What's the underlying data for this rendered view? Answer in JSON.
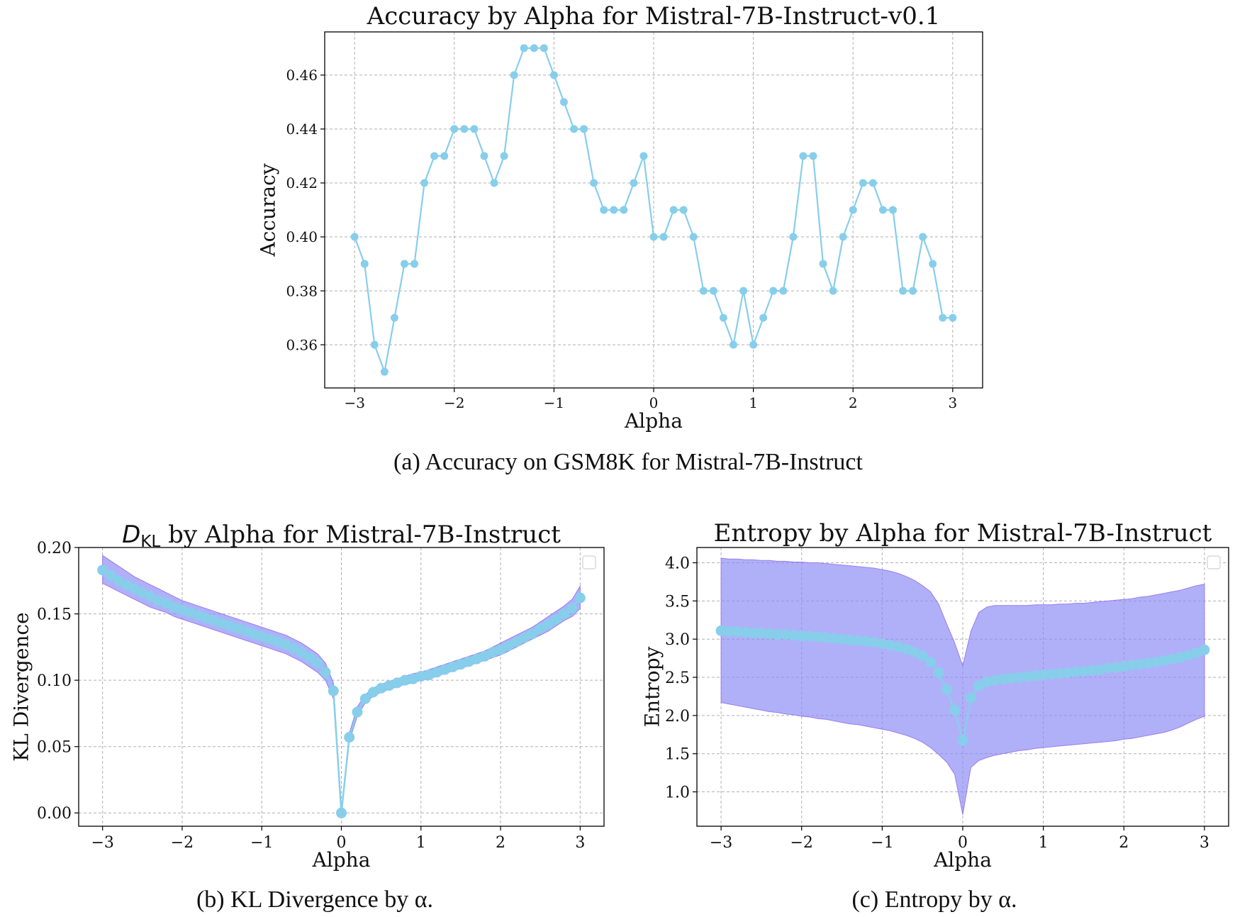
{
  "colors": {
    "line": "#87CEEB",
    "band": "#8B8BF5",
    "band_edge": "#9a7cf0",
    "grid": "#b0b0b0",
    "axis": "#000000"
  },
  "captions": {
    "a": "(a) Accuracy on GSM8K for Mistral-7B-Instruct",
    "b": "(b) KL Divergence by α.",
    "c": "(c) Entropy by α."
  },
  "chart_data": [
    {
      "id": "accuracy",
      "type": "line",
      "title": "Accuracy by Alpha for Mistral-7B-Instruct-v0.1",
      "xlabel": "Alpha",
      "ylabel": "Accuracy",
      "xlim": [
        -3.3,
        3.3
      ],
      "ylim": [
        0.344,
        0.476
      ],
      "xticks": [
        -3,
        -2,
        -1,
        0,
        1,
        2,
        3
      ],
      "xtick_labels": [
        "−3",
        "−2",
        "−1",
        "0",
        "1",
        "2",
        "3"
      ],
      "yticks": [
        0.36,
        0.38,
        0.4,
        0.42,
        0.44,
        0.46
      ],
      "ytick_labels": [
        "0.36",
        "0.38",
        "0.40",
        "0.42",
        "0.44",
        "0.46"
      ],
      "grid": true,
      "x": [
        -3.0,
        -2.9,
        -2.8,
        -2.7,
        -2.6,
        -2.5,
        -2.4,
        -2.3,
        -2.2,
        -2.1,
        -2.0,
        -1.9,
        -1.8,
        -1.7,
        -1.6,
        -1.5,
        -1.4,
        -1.3,
        -1.2,
        -1.1,
        -1.0,
        -0.9,
        -0.8,
        -0.7,
        -0.6,
        -0.5,
        -0.4,
        -0.3,
        -0.2,
        -0.1,
        0.0,
        0.1,
        0.2,
        0.3,
        0.4,
        0.5,
        0.6,
        0.7,
        0.8,
        0.9,
        1.0,
        1.1,
        1.2,
        1.3,
        1.4,
        1.5,
        1.6,
        1.7,
        1.8,
        1.9,
        2.0,
        2.1,
        2.2,
        2.3,
        2.4,
        2.5,
        2.6,
        2.7,
        2.8,
        2.9,
        3.0
      ],
      "y": [
        0.4,
        0.39,
        0.36,
        0.35,
        0.37,
        0.39,
        0.39,
        0.42,
        0.43,
        0.43,
        0.44,
        0.44,
        0.44,
        0.43,
        0.42,
        0.43,
        0.46,
        0.47,
        0.47,
        0.47,
        0.46,
        0.45,
        0.44,
        0.44,
        0.42,
        0.41,
        0.41,
        0.41,
        0.42,
        0.43,
        0.4,
        0.4,
        0.41,
        0.41,
        0.4,
        0.38,
        0.38,
        0.37,
        0.36,
        0.38,
        0.36,
        0.37,
        0.38,
        0.38,
        0.4,
        0.43,
        0.43,
        0.39,
        0.38,
        0.4,
        0.41,
        0.42,
        0.42,
        0.41,
        0.41,
        0.38,
        0.38,
        0.4,
        0.39,
        0.37,
        0.37
      ]
    },
    {
      "id": "kl",
      "type": "line",
      "title_math": "D",
      "title_sub": "KL",
      "title": " by Alpha for Mistral-7B-Instruct",
      "xlabel": "Alpha",
      "ylabel": "KL Divergence",
      "xlim": [
        -3.3,
        3.3
      ],
      "ylim": [
        -0.01,
        0.2
      ],
      "xticks": [
        -3,
        -2,
        -1,
        0,
        1,
        2,
        3
      ],
      "xtick_labels": [
        "−3",
        "−2",
        "−1",
        "0",
        "1",
        "2",
        "3"
      ],
      "yticks": [
        0.0,
        0.05,
        0.1,
        0.15,
        0.2
      ],
      "ytick_labels": [
        "0.00",
        "0.05",
        "0.10",
        "0.15",
        "0.20"
      ],
      "grid": true,
      "legend": "top-right (empty)",
      "x": [
        -3.0,
        -2.9,
        -2.8,
        -2.7,
        -2.6,
        -2.5,
        -2.4,
        -2.3,
        -2.2,
        -2.1,
        -2.0,
        -1.9,
        -1.8,
        -1.7,
        -1.6,
        -1.5,
        -1.4,
        -1.3,
        -1.2,
        -1.1,
        -1.0,
        -0.9,
        -0.8,
        -0.7,
        -0.6,
        -0.5,
        -0.4,
        -0.3,
        -0.2,
        -0.1,
        0.0,
        0.1,
        0.2,
        0.3,
        0.4,
        0.5,
        0.6,
        0.7,
        0.8,
        0.9,
        1.0,
        1.1,
        1.2,
        1.3,
        1.4,
        1.5,
        1.6,
        1.7,
        1.8,
        1.9,
        2.0,
        2.1,
        2.2,
        2.3,
        2.4,
        2.5,
        2.6,
        2.7,
        2.8,
        2.9,
        3.0
      ],
      "y": [
        0.183,
        0.179,
        0.175,
        0.172,
        0.169,
        0.166,
        0.163,
        0.16,
        0.158,
        0.155,
        0.153,
        0.151,
        0.149,
        0.147,
        0.145,
        0.143,
        0.141,
        0.139,
        0.137,
        0.135,
        0.133,
        0.131,
        0.129,
        0.127,
        0.124,
        0.121,
        0.117,
        0.113,
        0.106,
        0.092,
        0.0,
        0.057,
        0.076,
        0.086,
        0.091,
        0.094,
        0.096,
        0.098,
        0.1,
        0.101,
        0.103,
        0.104,
        0.106,
        0.108,
        0.11,
        0.112,
        0.114,
        0.116,
        0.118,
        0.121,
        0.123,
        0.126,
        0.129,
        0.132,
        0.135,
        0.139,
        0.142,
        0.146,
        0.15,
        0.154,
        0.162
      ],
      "band_lower": [
        0.173,
        0.17,
        0.167,
        0.164,
        0.161,
        0.158,
        0.155,
        0.153,
        0.151,
        0.148,
        0.146,
        0.144,
        0.142,
        0.14,
        0.138,
        0.136,
        0.134,
        0.132,
        0.13,
        0.128,
        0.126,
        0.124,
        0.122,
        0.12,
        0.117,
        0.114,
        0.11,
        0.106,
        0.1,
        0.086,
        0.0,
        0.054,
        0.073,
        0.083,
        0.088,
        0.091,
        0.093,
        0.095,
        0.097,
        0.098,
        0.1,
        0.101,
        0.103,
        0.105,
        0.107,
        0.109,
        0.111,
        0.113,
        0.115,
        0.117,
        0.119,
        0.122,
        0.125,
        0.128,
        0.131,
        0.134,
        0.137,
        0.141,
        0.145,
        0.148,
        0.154
      ],
      "band_upper": [
        0.194,
        0.19,
        0.186,
        0.182,
        0.178,
        0.175,
        0.172,
        0.169,
        0.166,
        0.163,
        0.16,
        0.158,
        0.156,
        0.154,
        0.152,
        0.15,
        0.148,
        0.146,
        0.144,
        0.142,
        0.14,
        0.138,
        0.136,
        0.134,
        0.131,
        0.128,
        0.124,
        0.12,
        0.113,
        0.098,
        0.0,
        0.06,
        0.08,
        0.089,
        0.094,
        0.097,
        0.099,
        0.101,
        0.103,
        0.105,
        0.106,
        0.108,
        0.11,
        0.112,
        0.114,
        0.116,
        0.118,
        0.12,
        0.122,
        0.125,
        0.128,
        0.131,
        0.134,
        0.137,
        0.14,
        0.144,
        0.148,
        0.152,
        0.156,
        0.161,
        0.171
      ]
    },
    {
      "id": "entropy",
      "type": "line",
      "title": "Entropy by Alpha for Mistral-7B-Instruct",
      "xlabel": "Alpha",
      "ylabel": "Entropy",
      "xlim": [
        -3.3,
        3.3
      ],
      "ylim": [
        0.55,
        4.2
      ],
      "xticks": [
        -3,
        -2,
        -1,
        0,
        1,
        2,
        3
      ],
      "xtick_labels": [
        "−3",
        "−2",
        "−1",
        "0",
        "1",
        "2",
        "3"
      ],
      "yticks": [
        1.0,
        1.5,
        2.0,
        2.5,
        3.0,
        3.5,
        4.0
      ],
      "ytick_labels": [
        "1.0",
        "1.5",
        "2.0",
        "2.5",
        "3.0",
        "3.5",
        "4.0"
      ],
      "grid": true,
      "legend": "top-right (empty)",
      "x": [
        -3.0,
        -2.9,
        -2.8,
        -2.7,
        -2.6,
        -2.5,
        -2.4,
        -2.3,
        -2.2,
        -2.1,
        -2.0,
        -1.9,
        -1.8,
        -1.7,
        -1.6,
        -1.5,
        -1.4,
        -1.3,
        -1.2,
        -1.1,
        -1.0,
        -0.9,
        -0.8,
        -0.7,
        -0.6,
        -0.5,
        -0.4,
        -0.3,
        -0.2,
        -0.1,
        0.0,
        0.1,
        0.2,
        0.3,
        0.4,
        0.5,
        0.6,
        0.7,
        0.8,
        0.9,
        1.0,
        1.1,
        1.2,
        1.3,
        1.4,
        1.5,
        1.6,
        1.7,
        1.8,
        1.9,
        2.0,
        2.1,
        2.2,
        2.3,
        2.4,
        2.5,
        2.6,
        2.7,
        2.8,
        2.9,
        3.0
      ],
      "y": [
        3.11,
        3.1,
        3.1,
        3.09,
        3.08,
        3.08,
        3.07,
        3.06,
        3.06,
        3.05,
        3.04,
        3.04,
        3.03,
        3.02,
        3.01,
        3.0,
        2.99,
        2.98,
        2.97,
        2.96,
        2.94,
        2.92,
        2.9,
        2.87,
        2.83,
        2.78,
        2.7,
        2.56,
        2.34,
        2.07,
        1.67,
        2.23,
        2.39,
        2.44,
        2.46,
        2.48,
        2.49,
        2.5,
        2.51,
        2.52,
        2.53,
        2.54,
        2.55,
        2.56,
        2.57,
        2.58,
        2.59,
        2.6,
        2.62,
        2.63,
        2.64,
        2.66,
        2.67,
        2.69,
        2.7,
        2.72,
        2.74,
        2.76,
        2.79,
        2.82,
        2.86
      ],
      "band_lower": [
        2.17,
        2.15,
        2.13,
        2.11,
        2.09,
        2.07,
        2.05,
        2.04,
        2.02,
        2.01,
        1.99,
        1.98,
        1.96,
        1.95,
        1.93,
        1.91,
        1.89,
        1.88,
        1.86,
        1.84,
        1.82,
        1.8,
        1.77,
        1.74,
        1.7,
        1.65,
        1.58,
        1.49,
        1.39,
        1.23,
        0.7,
        1.32,
        1.41,
        1.45,
        1.48,
        1.5,
        1.52,
        1.54,
        1.55,
        1.57,
        1.58,
        1.59,
        1.6,
        1.61,
        1.62,
        1.63,
        1.64,
        1.65,
        1.66,
        1.67,
        1.69,
        1.7,
        1.72,
        1.74,
        1.76,
        1.78,
        1.81,
        1.85,
        1.9,
        1.95,
        1.99
      ],
      "band_upper": [
        4.06,
        4.05,
        4.05,
        4.04,
        4.04,
        4.03,
        4.03,
        4.02,
        4.02,
        4.01,
        4.01,
        4.0,
        4.0,
        3.99,
        3.98,
        3.97,
        3.96,
        3.95,
        3.94,
        3.93,
        3.91,
        3.89,
        3.86,
        3.82,
        3.77,
        3.7,
        3.62,
        3.46,
        3.2,
        2.95,
        2.65,
        3.1,
        3.35,
        3.42,
        3.44,
        3.44,
        3.44,
        3.44,
        3.44,
        3.45,
        3.45,
        3.45,
        3.46,
        3.46,
        3.47,
        3.47,
        3.48,
        3.49,
        3.5,
        3.51,
        3.52,
        3.53,
        3.55,
        3.56,
        3.58,
        3.6,
        3.62,
        3.64,
        3.67,
        3.7,
        3.72
      ]
    }
  ]
}
